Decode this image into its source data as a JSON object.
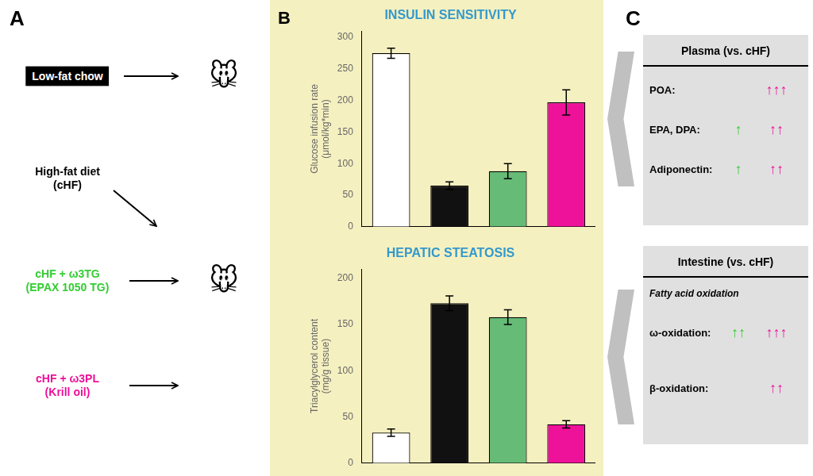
{
  "chart_data": [
    {
      "type": "bar",
      "title": "INSULIN SENSITIVITY",
      "y_label": "Glucose infusion rate\n(μmol/kg*min)",
      "categories": [
        null,
        null,
        null,
        null
      ],
      "values": [
        275,
        65,
        88,
        197
      ],
      "errors": [
        8,
        6,
        12,
        20
      ],
      "colors": [
        "#ffffff",
        "#111111",
        "#66bb77",
        "#ee1199"
      ],
      "ylim": [
        0,
        310
      ],
      "yticks": [
        0,
        50,
        100,
        150,
        200,
        250,
        300
      ],
      "grid": false,
      "tick_labels": "y"
    },
    {
      "type": "bar",
      "title": "HEPATIC STEATOSIS",
      "y_label": "Triacylglycerol content\n(mg/g tissue)",
      "categories": [
        null,
        null,
        null,
        null
      ],
      "values": [
        33,
        173,
        158,
        42
      ],
      "errors": [
        4,
        8,
        8,
        4
      ],
      "colors": [
        "#ffffff",
        "#111111",
        "#66bb77",
        "#ee1199"
      ],
      "ylim": [
        0,
        210
      ],
      "yticks": [
        0,
        50,
        100,
        150,
        200
      ],
      "grid": false,
      "tick_labels": "y"
    }
  ],
  "annotations": [
    {
      "text": "A"
    },
    {
      "text": "Low-fat chow"
    },
    {
      "text": "🐭"
    },
    {
      "text": "High-fat diet\n(cHF)"
    },
    {
      "text": "cHF + ω3TG\n(EPAX 1050 TG)",
      "color": "#33cc33"
    },
    {
      "text": "🐭"
    },
    {
      "text": "cHF + ω3PL\n(Krill oil)",
      "color": "#ee1199"
    },
    {
      "text": "B"
    },
    {
      "text": "C"
    },
    {
      "text": "Plasma (vs. cHF)"
    },
    {
      "text": "POA:"
    },
    {
      "text": "↑↑↑",
      "color": "#ee1199"
    },
    {
      "text": "EPA, DPA:"
    },
    {
      "text": "↑",
      "color": "#33cc33"
    },
    {
      "text": "↑↑",
      "color": "#ee1199"
    },
    {
      "text": "Adiponectin:"
    },
    {
      "text": "↑",
      "color": "#33cc33"
    },
    {
      "text": "↑↑",
      "color": "#ee1199"
    },
    {
      "text": "Intestine (vs. cHF)"
    },
    {
      "text": "Fatty acid oxidation"
    },
    {
      "text": "ω-oxidation:"
    },
    {
      "text": "↑↑",
      "color": "#33cc33"
    },
    {
      "text": "↑↑↑",
      "color": "#ee1199"
    },
    {
      "text": "β-oxidation:"
    },
    {
      "text": "↑↑",
      "color": "#ee1199"
    }
  ]
}
